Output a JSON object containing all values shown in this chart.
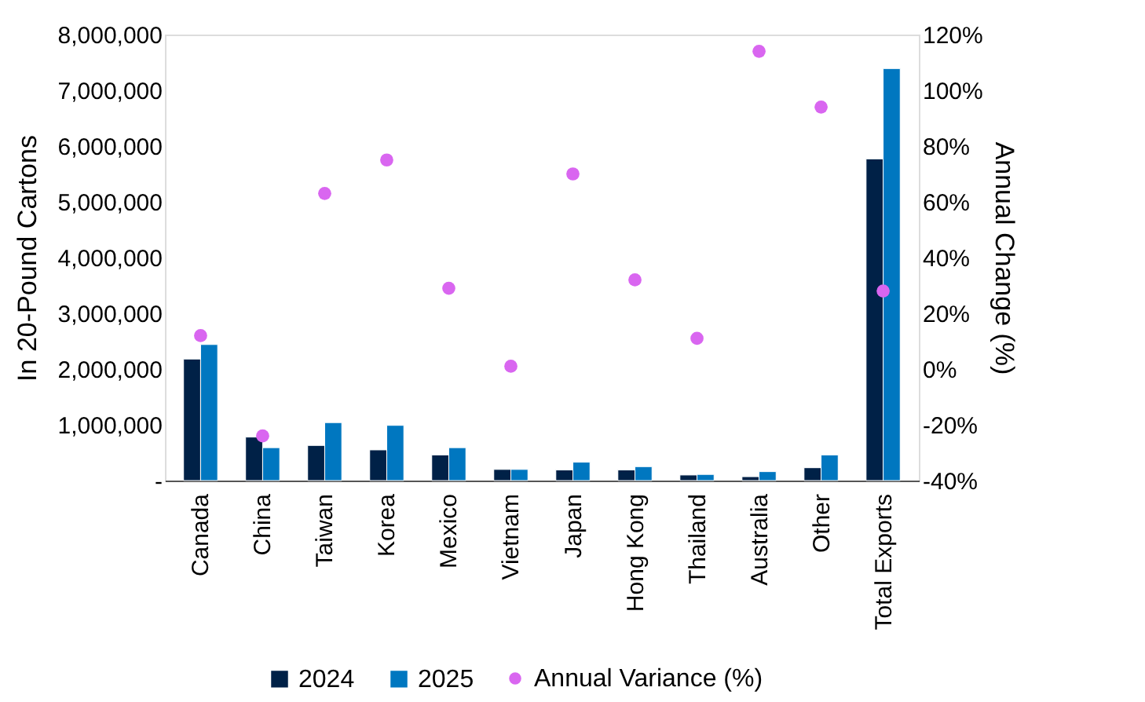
{
  "chart_data": {
    "type": "bar",
    "categories": [
      "Canada",
      "China",
      "Taiwan",
      "Korea",
      "Mexico",
      "Vietnam",
      "Japan",
      "Hong Kong",
      "Thailand",
      "Australia",
      "Other",
      "Total Exports"
    ],
    "series": [
      {
        "name": "2024",
        "color": "#002147",
        "values": [
          2180000,
          780000,
          630000,
          550000,
          460000,
          200000,
          190000,
          190000,
          100000,
          70000,
          230000,
          5770000
        ]
      },
      {
        "name": "2025",
        "color": "#0077c0",
        "values": [
          2440000,
          590000,
          1040000,
          990000,
          590000,
          200000,
          330000,
          250000,
          110000,
          160000,
          460000,
          7390000
        ]
      },
      {
        "name": "Annual Variance (%)",
        "type": "scatter",
        "axis": "y2",
        "marker": "circle",
        "color": "#d966f0",
        "values": [
          12,
          -24,
          63,
          75,
          29,
          1,
          70,
          32,
          11,
          114,
          94,
          28
        ]
      }
    ],
    "ylabel": "In 20-Pound Cartons",
    "y2label": "Annual Change (%)",
    "ylim": [
      0,
      8000000
    ],
    "yticks": [
      {
        "value": 0,
        "label": "-"
      },
      {
        "value": 1000000,
        "label": "1,000,000"
      },
      {
        "value": 2000000,
        "label": "2,000,000"
      },
      {
        "value": 3000000,
        "label": "3,000,000"
      },
      {
        "value": 4000000,
        "label": "4,000,000"
      },
      {
        "value": 5000000,
        "label": "5,000,000"
      },
      {
        "value": 6000000,
        "label": "6,000,000"
      },
      {
        "value": 7000000,
        "label": "7,000,000"
      },
      {
        "value": 8000000,
        "label": "8,000,000"
      }
    ],
    "y2lim": [
      -40,
      120
    ],
    "y2ticks": [
      {
        "value": -40,
        "label": "-40%"
      },
      {
        "value": -20,
        "label": "-20%"
      },
      {
        "value": 0,
        "label": "0%"
      },
      {
        "value": 20,
        "label": "20%"
      },
      {
        "value": 40,
        "label": "40%"
      },
      {
        "value": 60,
        "label": "60%"
      },
      {
        "value": 80,
        "label": "80%"
      },
      {
        "value": 100,
        "label": "100%"
      },
      {
        "value": 120,
        "label": "120%"
      }
    ],
    "legend": "bottom",
    "grid": false
  }
}
